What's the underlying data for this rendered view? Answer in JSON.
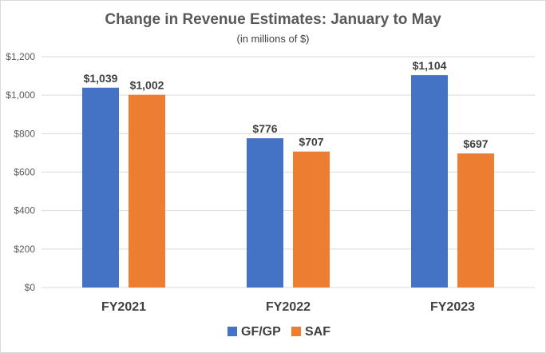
{
  "chart_data": {
    "type": "bar",
    "title": "Change in Revenue Estimates: January to May",
    "subtitle": "(in millions of $)",
    "xlabel": "",
    "ylabel": "",
    "categories": [
      "FY2021",
      "FY2022",
      "FY2023"
    ],
    "series": [
      {
        "name": "GF/GP",
        "color": "#4472c4",
        "values": [
          1039,
          776,
          1104
        ],
        "labels": [
          "$1,039",
          "$776",
          "$1,104"
        ]
      },
      {
        "name": "SAF",
        "color": "#ed7d31",
        "values": [
          1002,
          707,
          697
        ],
        "labels": [
          "$1,002",
          "$707",
          "$697"
        ]
      }
    ],
    "ylim": [
      0,
      1200
    ],
    "yticks": [
      0,
      200,
      400,
      600,
      800,
      1000,
      1200
    ],
    "ytick_labels": [
      "$0",
      "$200",
      "$400",
      "$600",
      "$800",
      "$1,000",
      "$1,200"
    ],
    "grid": true,
    "legend_position": "bottom"
  }
}
